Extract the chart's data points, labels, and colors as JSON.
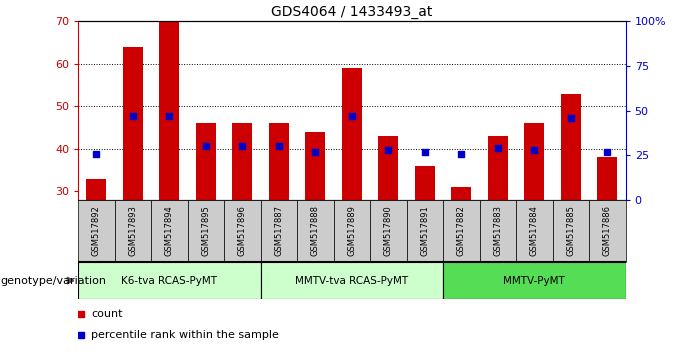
{
  "title": "GDS4064 / 1433493_at",
  "samples": [
    "GSM517892",
    "GSM517893",
    "GSM517894",
    "GSM517895",
    "GSM517896",
    "GSM517887",
    "GSM517888",
    "GSM517889",
    "GSM517890",
    "GSM517891",
    "GSM517882",
    "GSM517883",
    "GSM517884",
    "GSM517885",
    "GSM517886"
  ],
  "counts": [
    33,
    64,
    70,
    46,
    46,
    46,
    44,
    59,
    43,
    36,
    31,
    43,
    46,
    53,
    38
  ],
  "percentiles": [
    26,
    47,
    47,
    30,
    30,
    30,
    27,
    47,
    28,
    27,
    26,
    29,
    28,
    46,
    27
  ],
  "ylim_left": [
    28,
    70
  ],
  "ylim_right": [
    0,
    100
  ],
  "yticks_left": [
    30,
    40,
    50,
    60,
    70
  ],
  "yticks_right": [
    0,
    25,
    50,
    75,
    100
  ],
  "ytick_labels_right": [
    "0",
    "25",
    "50",
    "75",
    "100%"
  ],
  "bar_color": "#cc0000",
  "dot_color": "#0000cc",
  "groups": [
    {
      "label": "K6-tva RCAS-PyMT",
      "start": 0,
      "end": 4,
      "color": "#ccffcc"
    },
    {
      "label": "MMTV-tva RCAS-PyMT",
      "start": 5,
      "end": 9,
      "color": "#ccffcc"
    },
    {
      "label": "MMTV-PyMT",
      "start": 10,
      "end": 14,
      "color": "#55dd55"
    }
  ],
  "xlabel_left": "genotype/variation",
  "legend_count_label": "count",
  "legend_pct_label": "percentile rank within the sample",
  "tick_bg_color": "#cccccc",
  "bar_width": 0.55,
  "dot_size": 22
}
